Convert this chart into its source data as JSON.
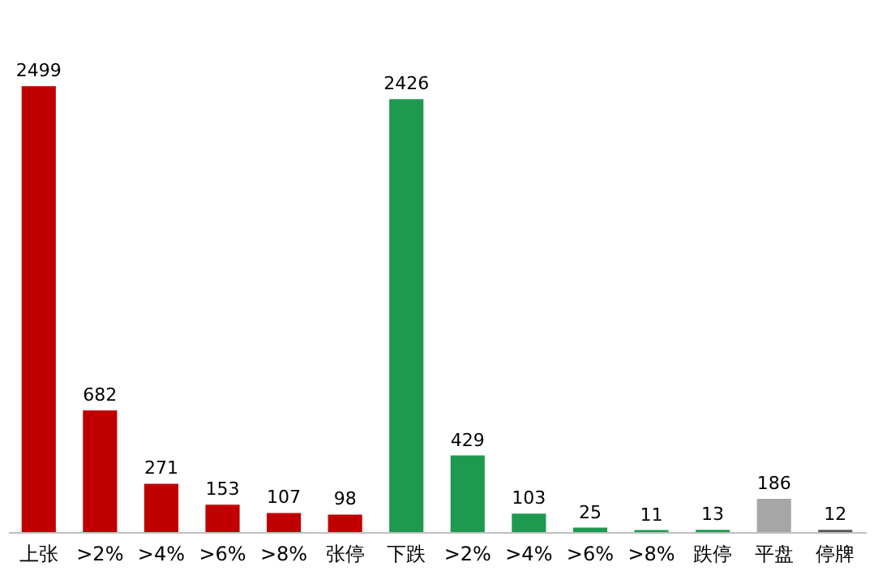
{
  "chart_data": {
    "type": "bar",
    "categories": [
      "上张",
      ">2%",
      ">4%",
      ">6%",
      ">8%",
      "张停",
      "下跌",
      ">2%",
      ">4%",
      ">6%",
      ">8%",
      "跌停",
      "平盘",
      "停牌"
    ],
    "values": [
      2499,
      682,
      271,
      153,
      107,
      98,
      2426,
      429,
      103,
      25,
      11,
      13,
      186,
      12
    ],
    "colors": [
      "#c00000",
      "#c00000",
      "#c00000",
      "#c00000",
      "#c00000",
      "#c00000",
      "#1e9a50",
      "#1e9a50",
      "#1e9a50",
      "#1e9a50",
      "#1e9a50",
      "#1e9a50",
      "#a6a6a6",
      "#595959"
    ],
    "data_labels": true
  }
}
